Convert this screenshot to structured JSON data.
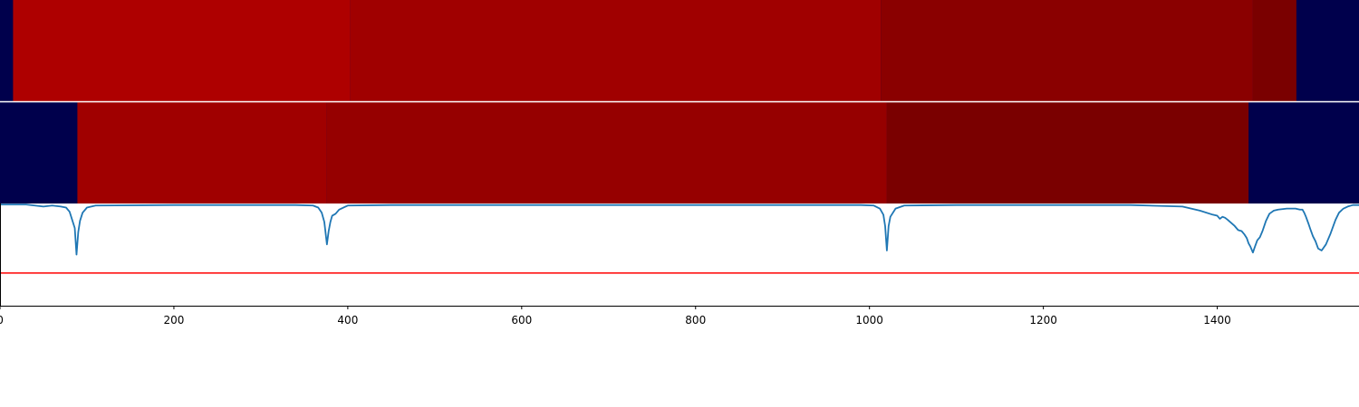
{
  "chart_data": {
    "type": "heatmap",
    "title": "",
    "xlabel": "",
    "ylabel": "",
    "xlim": [
      0,
      1563
    ],
    "xticks": [
      0,
      200,
      400,
      600,
      800,
      1000,
      1200,
      1400
    ],
    "xtick_labels": [
      "0",
      "200",
      "400",
      "600",
      "800",
      "1000",
      "1200",
      "1400"
    ],
    "background_color": "#00004c",
    "segment_rows": [
      {
        "name": "row-1",
        "segments": [
          {
            "start": 15,
            "end": 403,
            "color": "#ae0000"
          },
          {
            "start": 403,
            "end": 1013,
            "color": "#a00000"
          },
          {
            "start": 1013,
            "end": 1441,
            "color": "#8a0000"
          },
          {
            "start": 1441,
            "end": 1491,
            "color": "#7a0000"
          }
        ]
      },
      {
        "name": "row-2",
        "segments": [
          {
            "start": 89,
            "end": 376,
            "color": "#a00000"
          },
          {
            "start": 376,
            "end": 1020,
            "color": "#960000"
          },
          {
            "start": 1020,
            "end": 1436,
            "color": "#7a0000"
          }
        ]
      }
    ],
    "signal": {
      "name": "signal",
      "color": "#1f77b4",
      "ylim": [
        0,
        1
      ],
      "x": [
        0,
        30,
        40,
        50,
        60,
        70,
        76,
        80,
        83,
        86,
        88,
        90,
        92,
        95,
        100,
        110,
        200,
        300,
        340,
        360,
        366,
        370,
        373,
        376,
        378,
        380,
        382,
        386,
        390,
        400,
        450,
        600,
        800,
        900,
        990,
        1005,
        1012,
        1016,
        1018,
        1020,
        1022,
        1024,
        1030,
        1040,
        1100,
        1300,
        1360,
        1380,
        1395,
        1400,
        1403,
        1406,
        1409,
        1412,
        1416,
        1420,
        1424,
        1428,
        1431,
        1434,
        1436,
        1438,
        1441,
        1443,
        1446,
        1449,
        1452,
        1456,
        1460,
        1465,
        1470,
        1480,
        1490,
        1495,
        1498,
        1500,
        1502,
        1505,
        1507,
        1510,
        1513,
        1516,
        1520,
        1525,
        1530,
        1536,
        1540,
        1545,
        1550,
        1556,
        1563
      ],
      "y": [
        0.99,
        0.99,
        0.98,
        0.97,
        0.98,
        0.97,
        0.96,
        0.92,
        0.84,
        0.76,
        0.5,
        0.72,
        0.83,
        0.91,
        0.96,
        0.98,
        0.985,
        0.985,
        0.985,
        0.98,
        0.96,
        0.91,
        0.82,
        0.6,
        0.73,
        0.82,
        0.88,
        0.9,
        0.94,
        0.98,
        0.985,
        0.985,
        0.985,
        0.985,
        0.985,
        0.98,
        0.95,
        0.89,
        0.78,
        0.54,
        0.78,
        0.87,
        0.95,
        0.98,
        0.985,
        0.985,
        0.97,
        0.93,
        0.89,
        0.88,
        0.85,
        0.87,
        0.86,
        0.84,
        0.81,
        0.78,
        0.74,
        0.73,
        0.7,
        0.66,
        0.61,
        0.58,
        0.52,
        0.57,
        0.64,
        0.67,
        0.73,
        0.83,
        0.9,
        0.93,
        0.94,
        0.95,
        0.95,
        0.94,
        0.94,
        0.91,
        0.87,
        0.8,
        0.75,
        0.68,
        0.63,
        0.56,
        0.54,
        0.6,
        0.7,
        0.84,
        0.91,
        0.95,
        0.97,
        0.985,
        0.985
      ]
    },
    "threshold": {
      "name": "threshold",
      "value": 0.32,
      "color": "#ff0000"
    }
  }
}
